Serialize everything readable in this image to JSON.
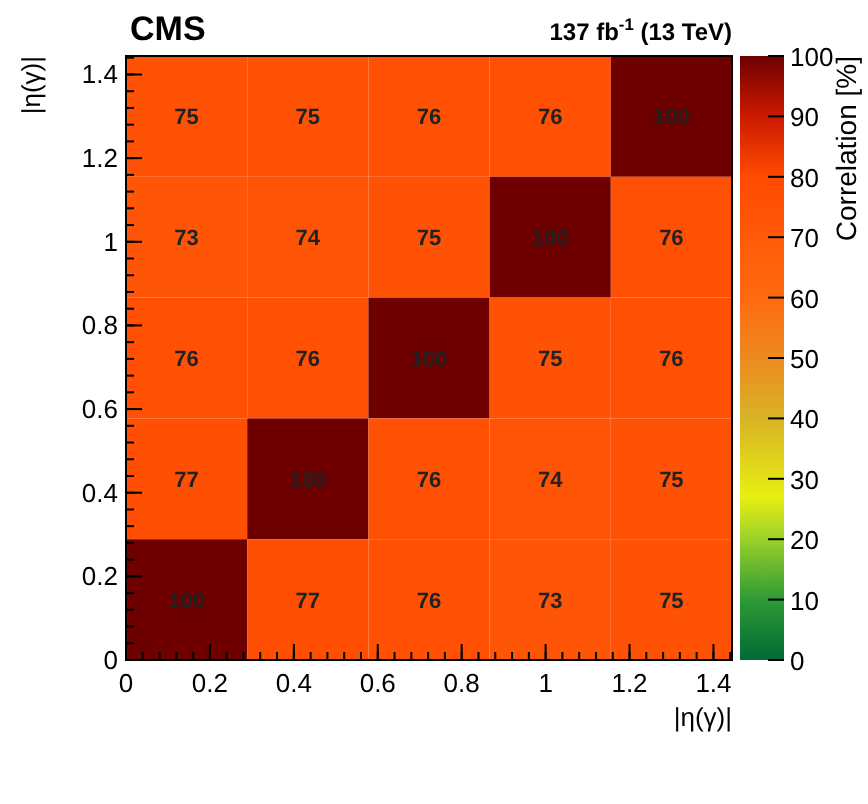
{
  "chart_data": {
    "type": "heatmap",
    "title": "CMS",
    "subtitle": "137 fb$^{-1}$ (13 TeV)",
    "xlabel": "|η(γ)|",
    "ylabel": "|η(γ)|",
    "clabel": "Correlation [%]",
    "xlim": [
      0,
      1.4442
    ],
    "ylim": [
      0,
      1.4442
    ],
    "xticks": [
      0,
      0.2,
      0.4,
      0.6,
      0.8,
      1,
      1.2,
      1.4
    ],
    "yticks": [
      0,
      0.2,
      0.4,
      0.6,
      0.8,
      1,
      1.2,
      1.4
    ],
    "cells": [
      [
        75,
        75,
        76,
        76,
        100
      ],
      [
        73,
        74,
        75,
        100,
        76
      ],
      [
        76,
        76,
        100,
        75,
        76
      ],
      [
        77,
        100,
        76,
        74,
        75
      ],
      [
        100,
        77,
        76,
        73,
        75
      ]
    ],
    "clim": [
      0,
      100
    ],
    "cticks": [
      0,
      10,
      20,
      30,
      40,
      50,
      60,
      70,
      80,
      90,
      100
    ],
    "data_labels": true
  }
}
